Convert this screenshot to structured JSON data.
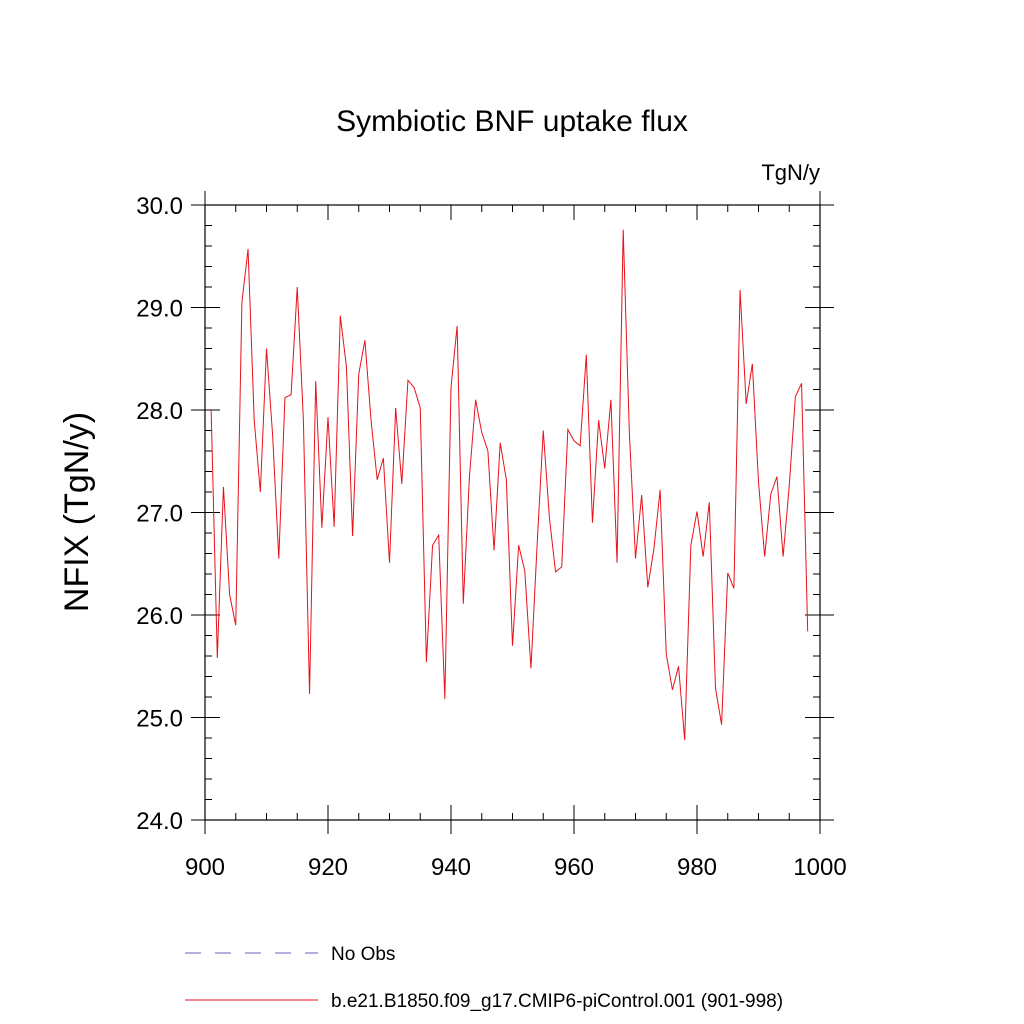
{
  "chart_data": {
    "type": "line",
    "title": "Symbiotic BNF uptake flux",
    "units": "TgN/y",
    "xlabel": "",
    "ylabel": "NFIX  (TgN/y)",
    "xlim": [
      900,
      1000
    ],
    "ylim": [
      24.0,
      30.0
    ],
    "xticks": [
      "900",
      "920",
      "940",
      "960",
      "980",
      "1000"
    ],
    "yticks": [
      "24.0",
      "25.0",
      "26.0",
      "27.0",
      "28.0",
      "29.0",
      "30.0"
    ],
    "grid": false,
    "legend_position": "bottom",
    "series": [
      {
        "name": "No Obs",
        "color": "#6b5fbf",
        "dash": "dashed",
        "x": [],
        "values": []
      },
      {
        "name": "b.e21.B1850.f09_g17.CMIP6-piControl.001 (901-998)",
        "color": "#e8111a",
        "dash": "solid",
        "x": [
          901,
          902,
          903,
          904,
          905,
          906,
          907,
          908,
          909,
          910,
          911,
          912,
          913,
          914,
          915,
          916,
          917,
          918,
          919,
          920,
          921,
          922,
          923,
          924,
          925,
          926,
          927,
          928,
          929,
          930,
          931,
          932,
          933,
          934,
          935,
          936,
          937,
          938,
          939,
          940,
          941,
          942,
          943,
          944,
          945,
          946,
          947,
          948,
          949,
          950,
          951,
          952,
          953,
          954,
          955,
          956,
          957,
          958,
          959,
          960,
          961,
          962,
          963,
          964,
          965,
          966,
          967,
          968,
          969,
          970,
          971,
          972,
          973,
          974,
          975,
          976,
          977,
          978,
          979,
          980,
          981,
          982,
          983,
          984,
          985,
          986,
          987,
          988,
          989,
          990,
          991,
          992,
          993,
          994,
          995,
          996,
          997,
          998
        ],
        "values": [
          28.0,
          25.58,
          27.25,
          26.2,
          25.9,
          29.05,
          29.57,
          27.9,
          27.2,
          28.6,
          27.75,
          26.55,
          28.12,
          28.15,
          29.2,
          27.9,
          25.23,
          28.28,
          26.85,
          27.93,
          26.86,
          28.92,
          28.42,
          26.77,
          28.35,
          28.68,
          27.9,
          27.32,
          27.53,
          26.51,
          28.02,
          27.28,
          28.29,
          28.22,
          28.02,
          25.54,
          26.68,
          26.78,
          25.18,
          28.22,
          28.82,
          26.11,
          27.35,
          28.1,
          27.78,
          27.6,
          26.63,
          27.68,
          27.32,
          25.7,
          26.68,
          26.43,
          25.48,
          26.68,
          27.8,
          26.95,
          26.42,
          26.47,
          27.81,
          27.7,
          27.65,
          28.54,
          26.9,
          27.9,
          27.43,
          28.1,
          26.51,
          29.76,
          27.78,
          26.55,
          27.17,
          26.27,
          26.65,
          27.22,
          25.62,
          25.27,
          25.5,
          24.78,
          26.68,
          27.01,
          26.57,
          27.1,
          25.29,
          24.93,
          26.41,
          26.26,
          29.17,
          28.06,
          28.45,
          27.3,
          26.57,
          27.18,
          27.35,
          26.57,
          27.26,
          28.13,
          28.26,
          25.84
        ]
      }
    ]
  }
}
